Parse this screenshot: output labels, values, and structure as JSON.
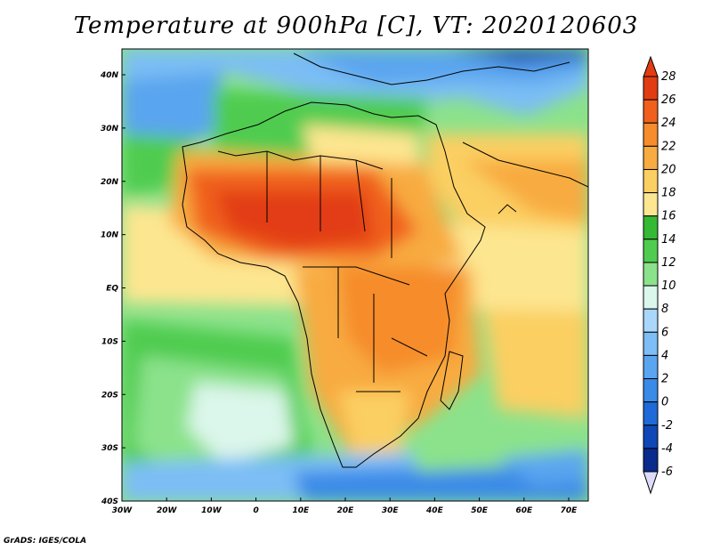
{
  "title": "Temperature at 900hPa [C], VT: 2020120603",
  "credit": "GrADS: IGES/COLA",
  "axes": {
    "lat_labels": [
      "40N",
      "30N",
      "20N",
      "10N",
      "EQ",
      "10S",
      "20S",
      "30S",
      "40S"
    ],
    "lon_labels": [
      "30W",
      "20W",
      "10W",
      "0",
      "10E",
      "20E",
      "30E",
      "40E",
      "50E",
      "60E",
      "70E"
    ]
  },
  "colorbar": {
    "labels": [
      "28",
      "26",
      "24",
      "22",
      "20",
      "18",
      "16",
      "14",
      "12",
      "10",
      "8",
      "6",
      "4",
      "2",
      "0",
      "-2",
      "-4",
      "-6"
    ],
    "colors": [
      "#e23c12",
      "#f0601c",
      "#f68c2c",
      "#f8ab40",
      "#fbcf62",
      "#fde690",
      "#35b935",
      "#4fcc4f",
      "#8be28b",
      "#dbf6ea",
      "#a8d7fa",
      "#7cbef5",
      "#5aa5ef",
      "#3a8ae8",
      "#1f6ad8",
      "#1047b6",
      "#0a2a8c",
      "#dcdcfa"
    ]
  },
  "legend_colors": {
    "ocean_cold": "#0a2a8c",
    "coast_line": "#000000"
  }
}
